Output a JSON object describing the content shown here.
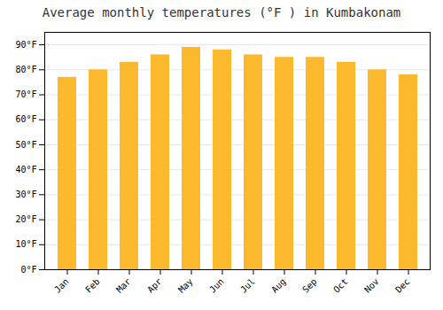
{
  "chart_data": {
    "type": "bar",
    "title": "Average monthly temperatures (°F ) in Kumbakonam",
    "categories": [
      "Jan",
      "Feb",
      "Mar",
      "Apr",
      "May",
      "Jun",
      "Jul",
      "Aug",
      "Sep",
      "Oct",
      "Nov",
      "Dec"
    ],
    "values": [
      77,
      80,
      83,
      86,
      89,
      88,
      86,
      85,
      85,
      83,
      80,
      78
    ],
    "color": "#FDB92E",
    "ylim": [
      0,
      95
    ],
    "yticks": [
      {
        "value": 0,
        "label": "0°F"
      },
      {
        "value": 10,
        "label": "10°F"
      },
      {
        "value": 20,
        "label": "20°F"
      },
      {
        "value": 30,
        "label": "30°F"
      },
      {
        "value": 40,
        "label": "40°F"
      },
      {
        "value": 50,
        "label": "50°F"
      },
      {
        "value": 60,
        "label": "60°F"
      },
      {
        "value": 70,
        "label": "70°F"
      },
      {
        "value": 80,
        "label": "80°F"
      },
      {
        "value": 90,
        "label": "90°F"
      }
    ],
    "grid": true
  }
}
